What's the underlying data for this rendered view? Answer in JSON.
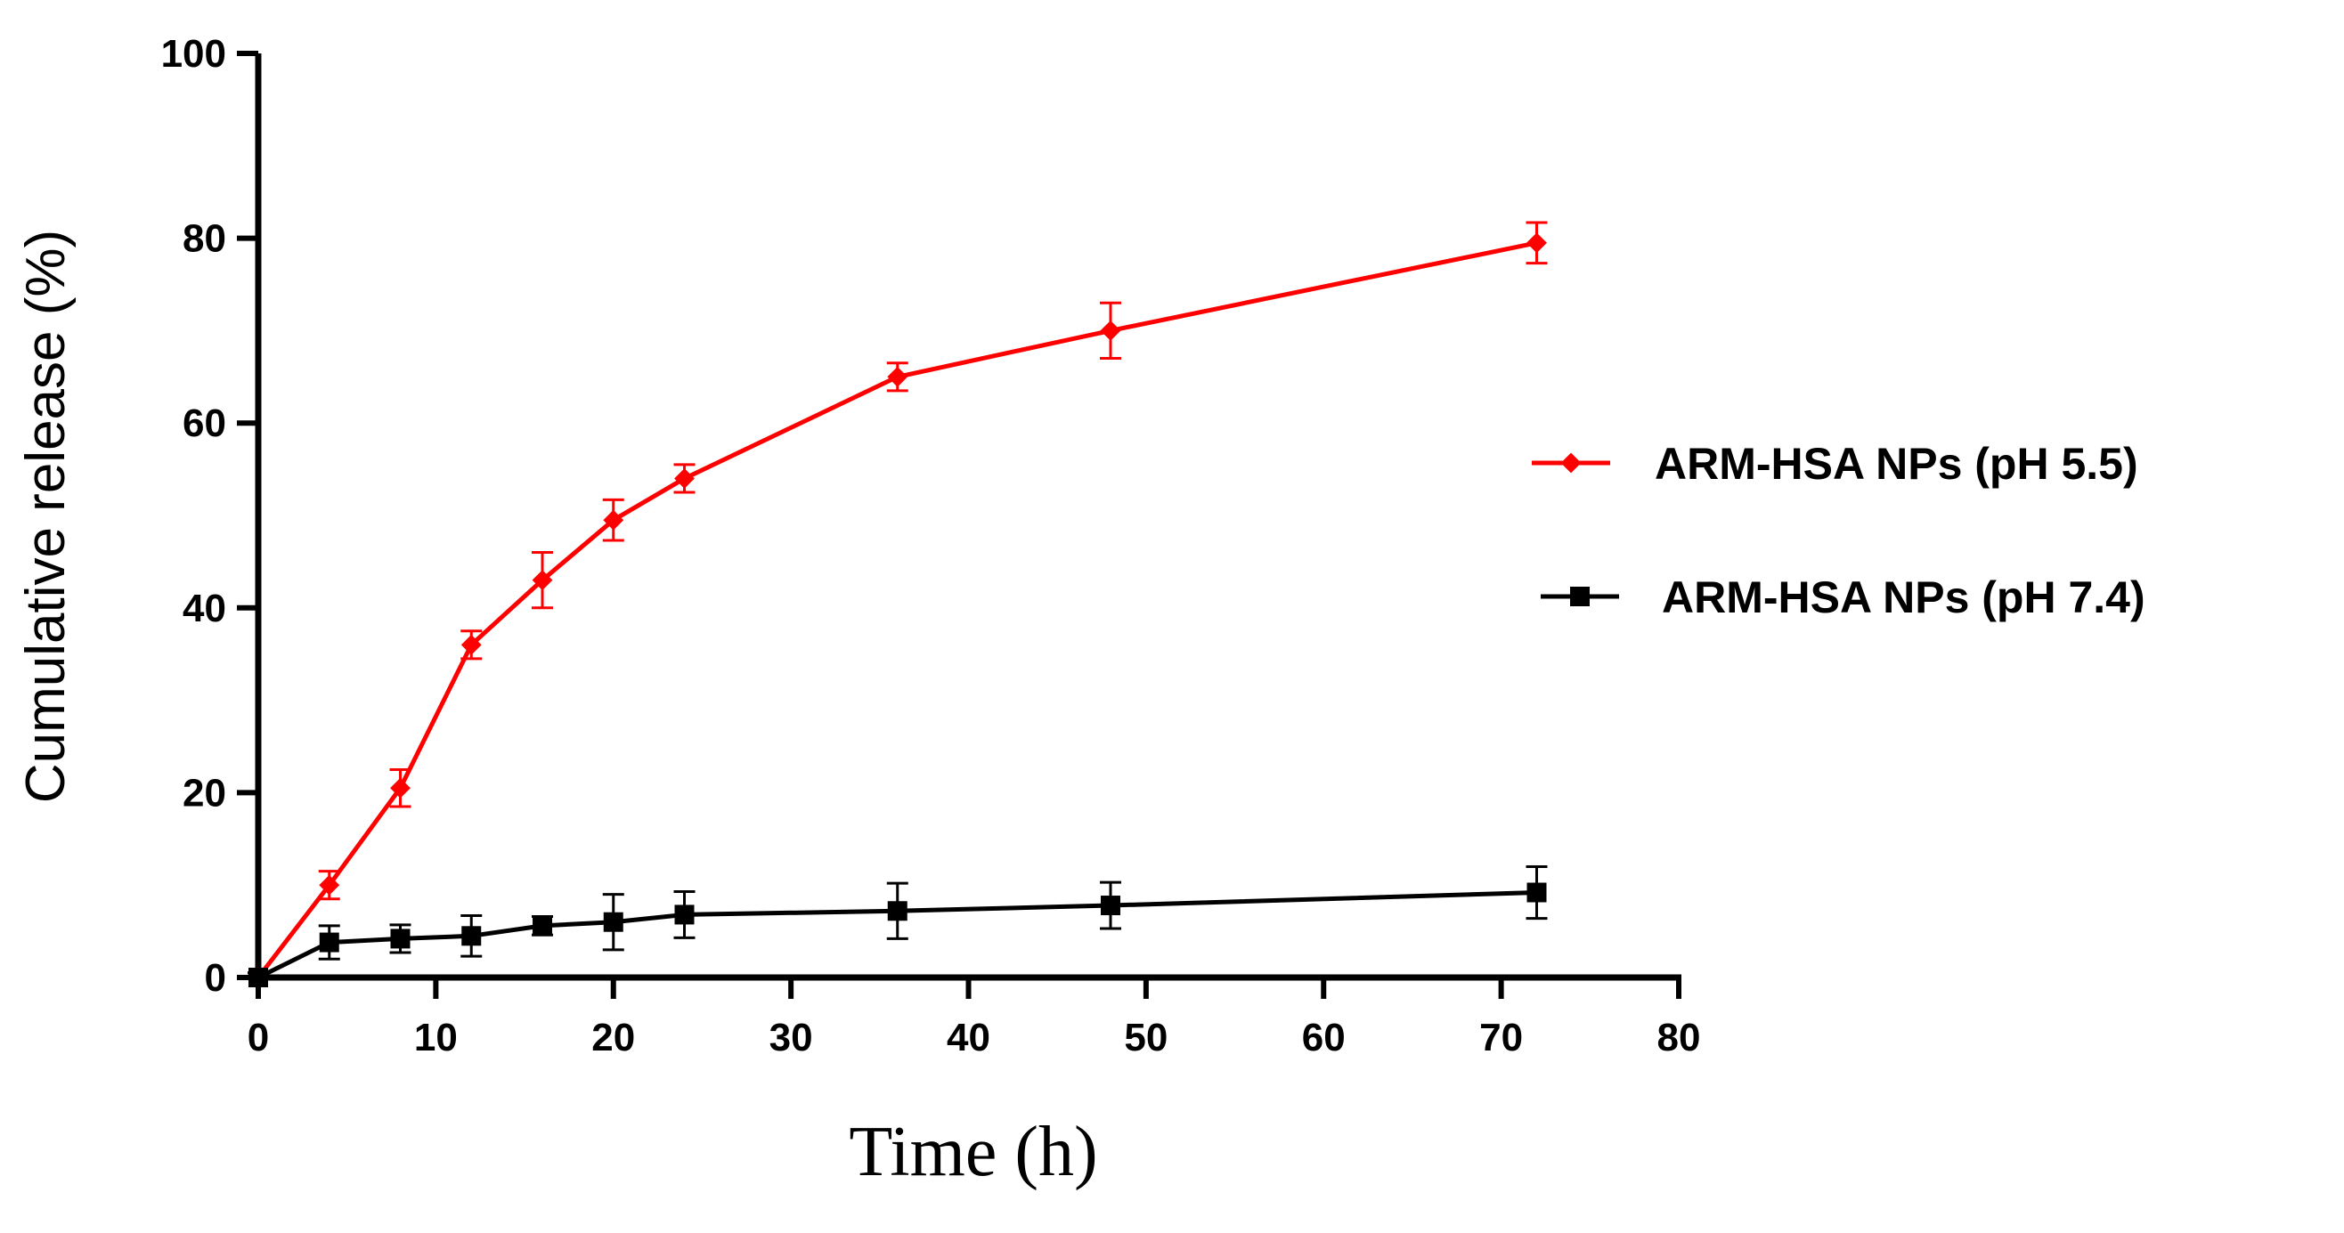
{
  "chart_data": {
    "type": "line",
    "title": "",
    "xlabel": "Time (h)",
    "ylabel": "Cumulative release (%)",
    "xlim": [
      0,
      80
    ],
    "ylim": [
      0,
      100
    ],
    "x_ticks": [
      0,
      10,
      20,
      30,
      40,
      50,
      60,
      70,
      80
    ],
    "y_ticks": [
      0,
      20,
      40,
      60,
      80,
      100
    ],
    "grid": false,
    "legend_position": "right",
    "series": [
      {
        "name": "ARM-HSA NPs (pH 5.5)",
        "color": "#ff0000",
        "marker": "diamond",
        "x": [
          0,
          4,
          8,
          12,
          16,
          20,
          24,
          36,
          48,
          72
        ],
        "y": [
          0,
          10,
          20.5,
          36,
          43,
          49.5,
          54,
          65,
          70,
          79.5
        ],
        "error": [
          0.5,
          1.5,
          2,
          1.5,
          3,
          2.2,
          1.5,
          1.5,
          3,
          2.2
        ]
      },
      {
        "name": "ARM-HSA NPs (pH 7.4)",
        "color": "#000000",
        "marker": "square",
        "x": [
          0,
          4,
          8,
          12,
          16,
          20,
          24,
          36,
          48,
          72
        ],
        "y": [
          0,
          3.8,
          4.2,
          4.5,
          5.6,
          6,
          6.8,
          7.2,
          7.8,
          9.2
        ],
        "error": [
          0.5,
          1.8,
          1.5,
          2.2,
          1,
          3,
          2.5,
          3,
          2.5,
          2.8
        ]
      }
    ]
  }
}
